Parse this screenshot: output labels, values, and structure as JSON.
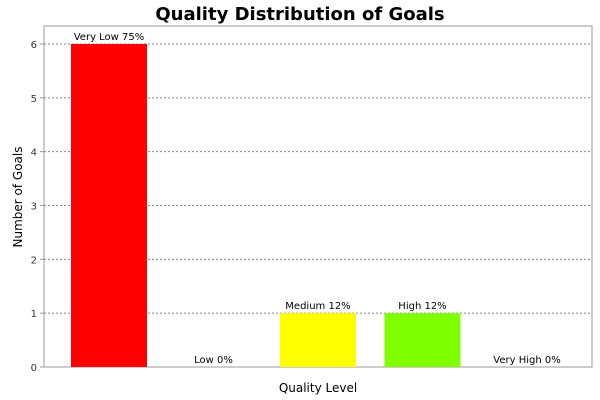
{
  "chart_data": {
    "type": "bar",
    "title": "Quality Distribution of Goals",
    "xlabel": "Quality Level",
    "ylabel": "Number of Goals",
    "ylim": [
      0,
      6
    ],
    "yticks": [
      "0",
      "1",
      "2",
      "3",
      "4",
      "5",
      "6"
    ],
    "grid": true,
    "categories": [
      "Very Low",
      "Low",
      "Medium",
      "High",
      "Very High"
    ],
    "values": [
      6,
      0,
      1,
      1,
      0
    ],
    "bar_labels": [
      "Very Low 75%",
      "Low 0%",
      "Medium 12%",
      "High 12%",
      "Very High 0%"
    ],
    "colors": [
      "#ff0000",
      "#ff9900",
      "#ffff00",
      "#80ff00",
      "#00c000"
    ]
  }
}
